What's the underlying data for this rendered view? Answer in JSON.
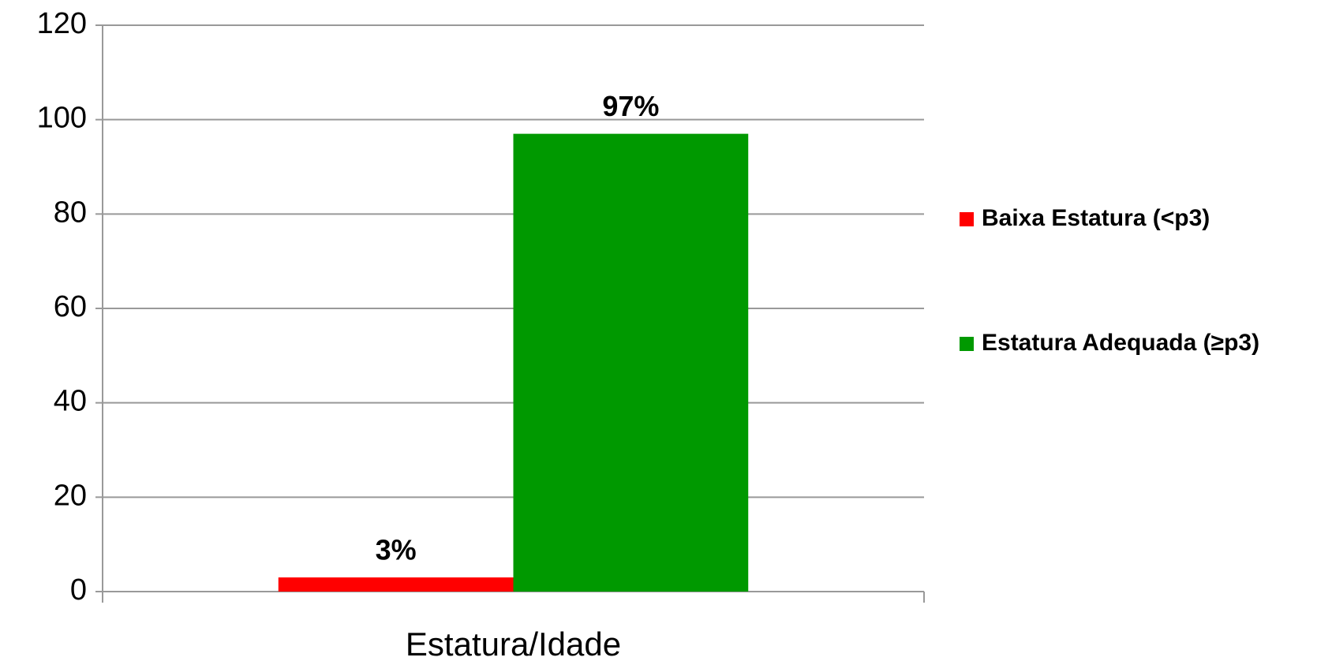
{
  "chart_data": {
    "type": "bar",
    "categories": [
      "Estatura/Idade"
    ],
    "series": [
      {
        "name": "Baixa Estatura (<p3)",
        "color": "#ff0000",
        "values": [
          3
        ],
        "value_labels": [
          "3%"
        ]
      },
      {
        "name": "Estatura Adequada (≥p3)",
        "color": "#009900",
        "values": [
          97
        ],
        "value_labels": [
          "97%"
        ]
      }
    ],
    "ylim": [
      0,
      120
    ],
    "yticks": [
      0,
      20,
      40,
      60,
      80,
      100,
      120
    ],
    "grid": true,
    "legend": "right"
  }
}
